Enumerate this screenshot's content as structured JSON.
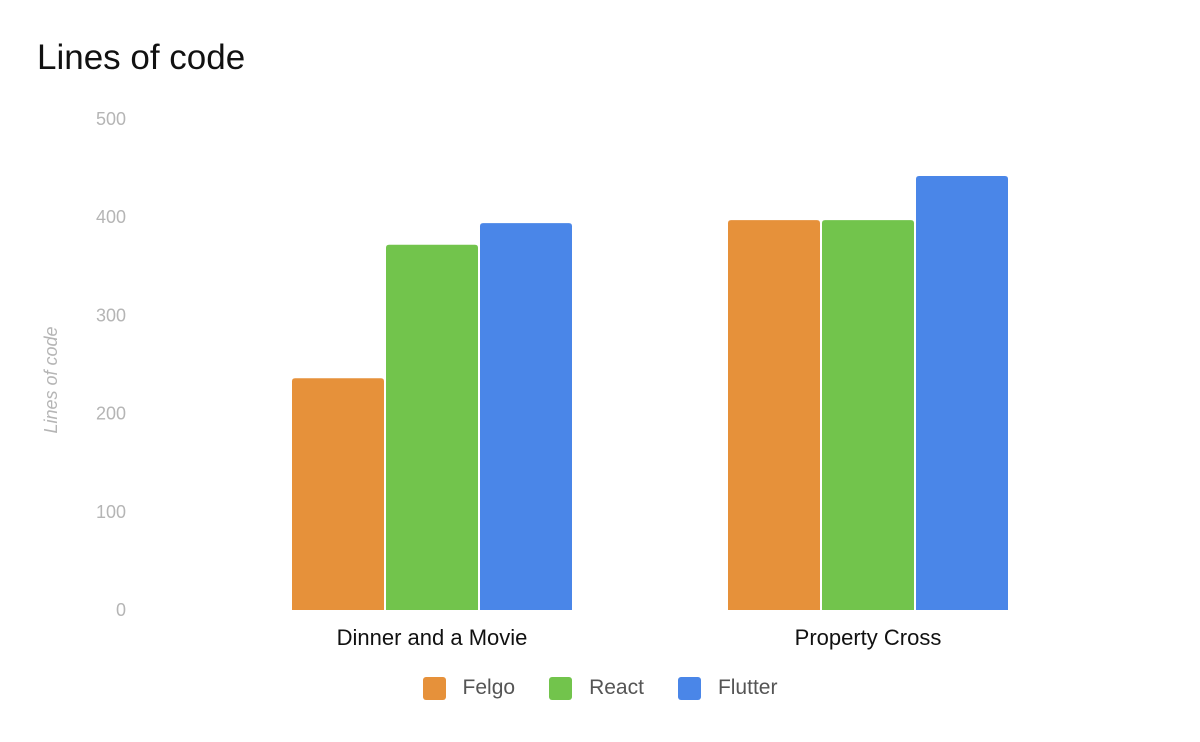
{
  "chart_data": {
    "type": "bar",
    "title": "Lines of code",
    "ylabel": "Lines of code",
    "xlabel": "",
    "categories": [
      "Dinner and a Movie",
      "Property Cross"
    ],
    "series": [
      {
        "name": "Felgo",
        "color": "#E6913A",
        "values": [
          236,
          397
        ]
      },
      {
        "name": "React",
        "color": "#72C44C",
        "values": [
          372,
          397
        ]
      },
      {
        "name": "Flutter",
        "color": "#4A86E8",
        "values": [
          394,
          442
        ]
      }
    ],
    "ylim": [
      0,
      500
    ],
    "yticks": [
      0,
      100,
      200,
      300,
      400,
      500
    ],
    "grid": false,
    "legend_position": "bottom"
  }
}
